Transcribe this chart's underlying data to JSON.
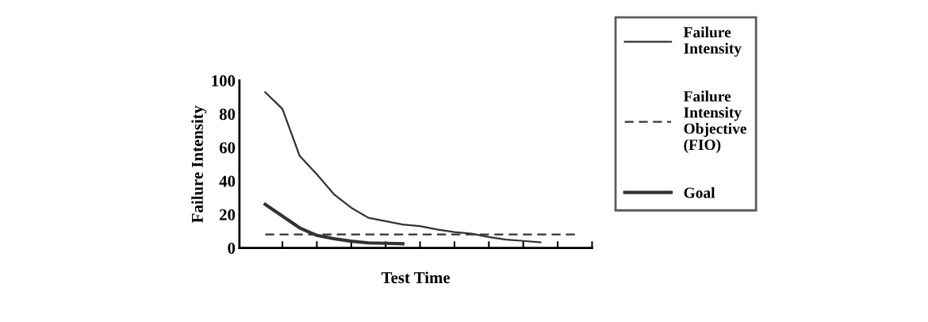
{
  "chart_data": {
    "type": "line",
    "xlabel": "Test Time",
    "ylabel": "Failure Intensity",
    "categories": [
      null,
      null,
      null,
      null,
      null,
      null,
      null,
      null,
      null,
      null,
      null,
      null,
      null,
      null,
      null,
      null,
      null,
      null,
      null,
      null
    ],
    "ylim": [
      0,
      100
    ],
    "yticks": [
      0,
      20,
      40,
      60,
      80,
      100
    ],
    "legend": "right",
    "grid": false,
    "series": [
      {
        "name": "Failure Intensity",
        "color": "#333333",
        "line_style": "solid",
        "values": [
          93,
          83,
          55,
          44,
          32,
          24,
          18,
          16,
          14,
          13,
          11,
          9.5,
          8.5,
          6.5,
          5,
          4.2,
          3.4,
          null,
          null,
          null
        ]
      },
      {
        "name": "Failure Intensity Objective (FIO)",
        "color": "#333333",
        "line_style": "dashed",
        "values": [
          8,
          8,
          8,
          8,
          8,
          8,
          8,
          8,
          8,
          8,
          8,
          8,
          8,
          8,
          8,
          8,
          8,
          8,
          8,
          null
        ]
      },
      {
        "name": "Goal",
        "color": "#333333",
        "line_style": "solid",
        "values": [
          26,
          19,
          12,
          7.5,
          5.5,
          4,
          3,
          2.8,
          2.5,
          null,
          null,
          null,
          null,
          null,
          null,
          null,
          null,
          null,
          null,
          null
        ]
      }
    ]
  }
}
